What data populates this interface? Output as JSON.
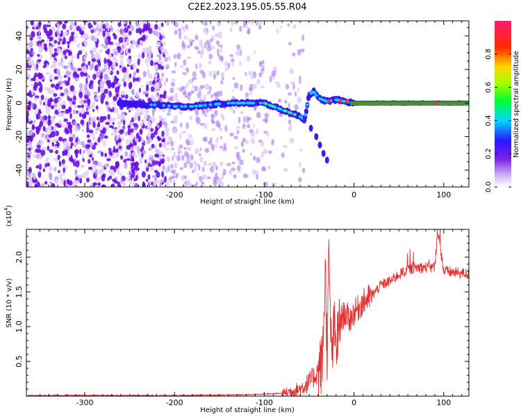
{
  "figure": {
    "title": "C2E2.2023.195.05.55.R04"
  },
  "chart_data": [
    {
      "type": "heatmap",
      "xlabel": "Height of straight line (km)",
      "ylabel": "Frequency (Hz)",
      "xlim": [
        -365,
        128
      ],
      "ylim": [
        -50,
        49
      ],
      "xticks": [
        -300,
        -200,
        -100,
        0,
        100
      ],
      "yticks": [
        -40,
        -20,
        0,
        20,
        40
      ],
      "grid": false,
      "colorbar": {
        "label": "Normalized spectral amplitude",
        "range": [
          0,
          1
        ],
        "ticks": [
          0.0,
          0.2,
          0.4,
          0.6,
          0.8
        ],
        "colormap": "rainbow (white-purple-blue-cyan-green-yellow-red-pink)"
      },
      "signal_track": {
        "x": [
          -260,
          -240,
          -220,
          -200,
          -180,
          -160,
          -140,
          -120,
          -100,
          -80,
          -70,
          -60,
          -55,
          -50,
          -45,
          -40,
          -35,
          -30,
          -20,
          -10,
          0,
          20,
          50,
          90,
          128
        ],
        "y": [
          0,
          -1,
          -1,
          -2,
          -2,
          -1,
          0,
          0,
          0,
          -4,
          -6,
          -8,
          -10,
          5,
          7,
          3,
          2,
          1,
          2,
          1,
          0,
          0,
          0,
          0,
          0
        ]
      },
      "branch_track": {
        "x": [
          -55,
          -48,
          -42,
          -38,
          -34,
          -30
        ],
        "y": [
          -10,
          -15,
          -20,
          -25,
          -30,
          -34
        ]
      }
    },
    {
      "type": "line",
      "xlabel": "Height of straight line (km)",
      "ylabel": "SNR (10 * v/v)",
      "ylabel_multiplier": "(x10",
      "ylabel_exponent": "4",
      "ylabel_close": ")",
      "xlim": [
        -365,
        128
      ],
      "ylim": [
        0,
        2.4
      ],
      "xticks": [
        -300,
        -200,
        -100,
        0,
        100
      ],
      "yticks": [
        0.5,
        1.0,
        1.5,
        2.0
      ],
      "ytick_labels": [
        "0.5",
        "1.0",
        "1.5",
        "2.0"
      ],
      "color": "#e23030",
      "series": [
        {
          "x": [
            -365,
            -300,
            -200,
            -120,
            -80,
            -60,
            -50,
            -40,
            -35,
            -32,
            -30,
            -28,
            -25,
            -22,
            -20,
            -15,
            -10,
            -5,
            0,
            10,
            20,
            30,
            40,
            50,
            60,
            70,
            80,
            90,
            93,
            100,
            110,
            128
          ],
          "y": [
            0.01,
            0.01,
            0.01,
            0.02,
            0.04,
            0.1,
            0.2,
            0.35,
            0.5,
            1.9,
            0.6,
            1.95,
            0.5,
            1.0,
            0.7,
            1.1,
            1.2,
            1.1,
            1.2,
            1.35,
            1.45,
            1.6,
            1.65,
            1.75,
            1.82,
            1.85,
            1.85,
            1.85,
            2.4,
            1.8,
            1.78,
            1.76
          ]
        }
      ]
    }
  ]
}
